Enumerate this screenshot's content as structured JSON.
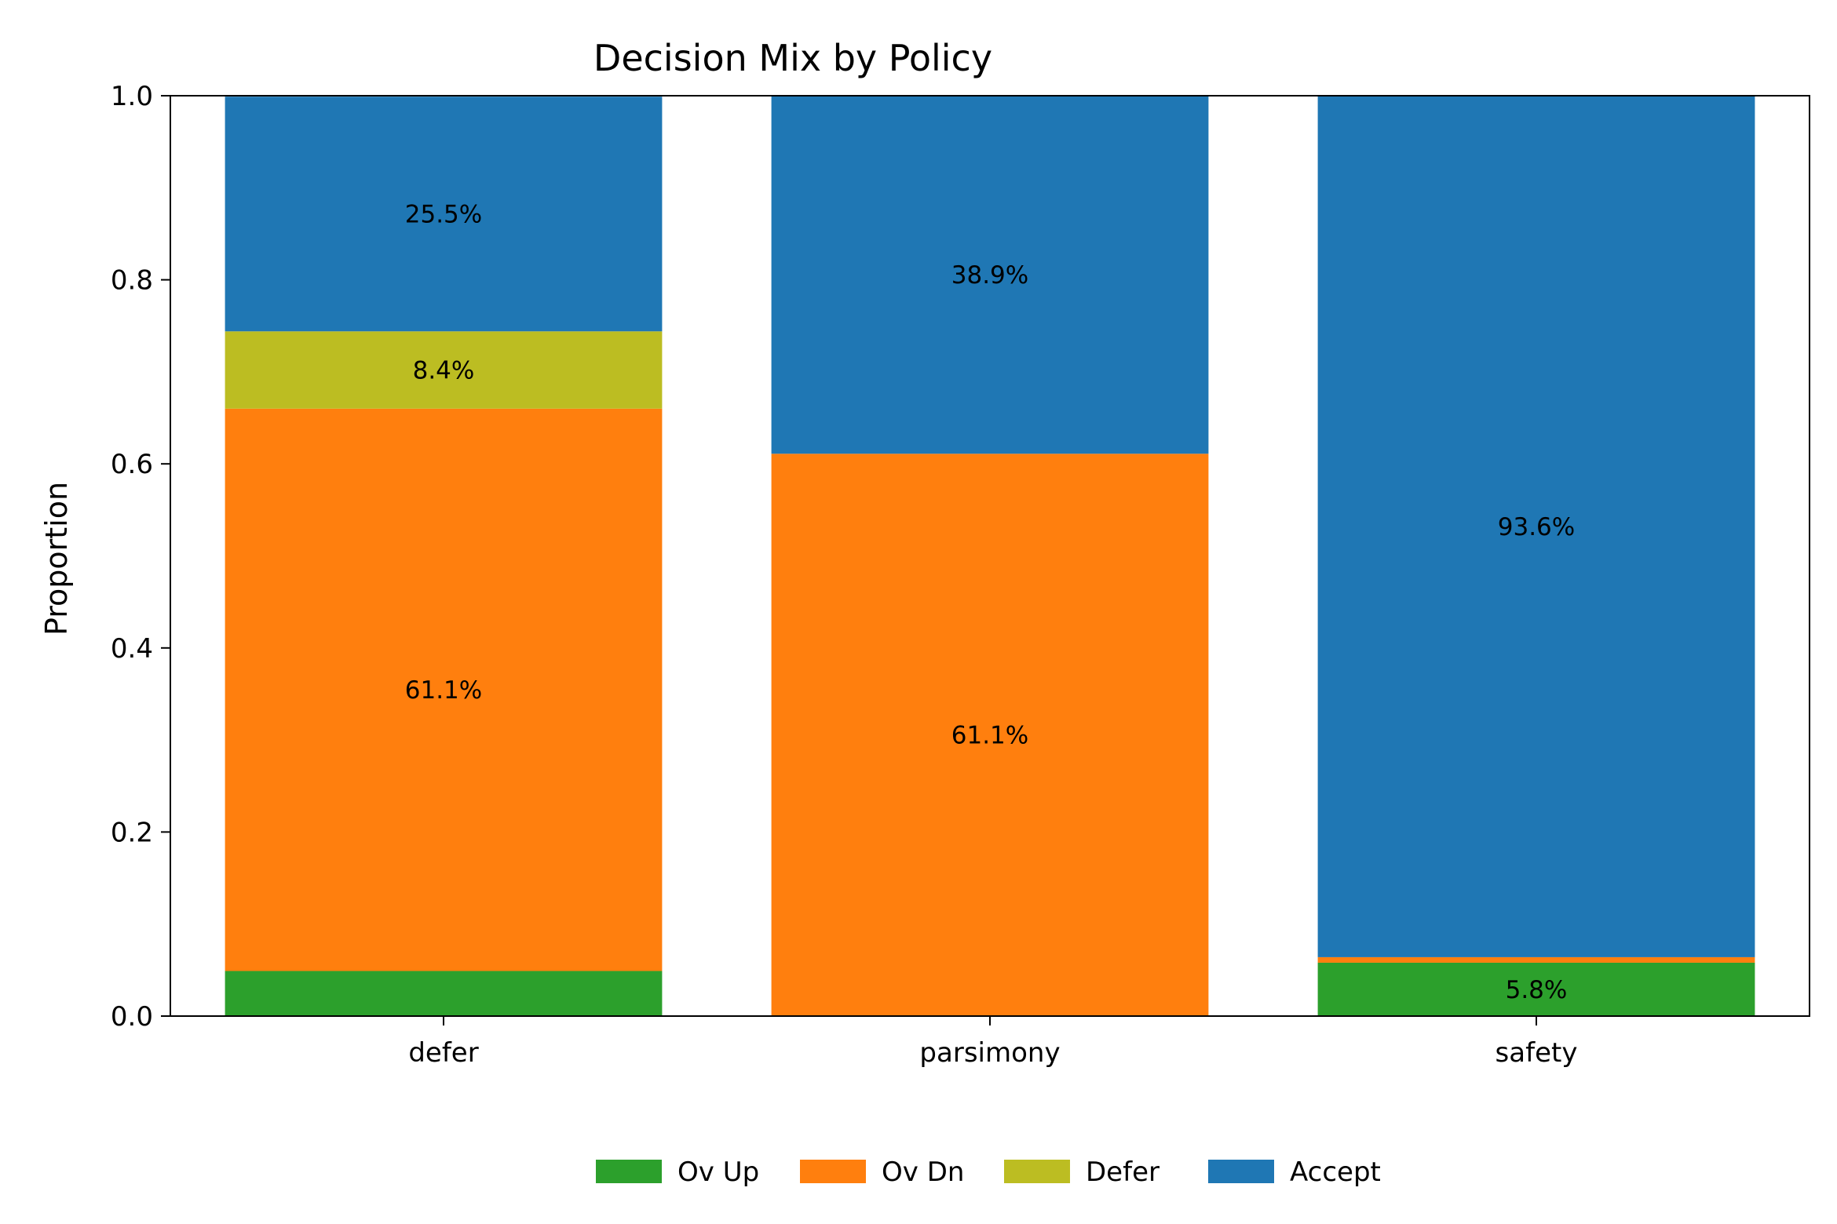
{
  "chart_data": {
    "type": "bar",
    "stacked": true,
    "normalized": true,
    "title": "Decision Mix by Policy",
    "xlabel": "",
    "ylabel": "Proportion",
    "ylim": [
      0,
      1
    ],
    "yticks": [
      0.0,
      0.2,
      0.4,
      0.6,
      0.8,
      1.0
    ],
    "ytick_labels": [
      "0.0",
      "0.2",
      "0.4",
      "0.6",
      "0.8",
      "1.0"
    ],
    "categories": [
      "defer",
      "parsimony",
      "safety"
    ],
    "grid": false,
    "legend_position": "bottom-center",
    "series": [
      {
        "name": "Ov Up",
        "color": "#2ca02c",
        "values": [
          0.049,
          0.0,
          0.058
        ],
        "labels": [
          "",
          "",
          "5.8%"
        ]
      },
      {
        "name": "Ov Dn",
        "color": "#ff7f0e",
        "values": [
          0.611,
          0.611,
          0.006
        ],
        "labels": [
          "61.1%",
          "61.1%",
          ""
        ]
      },
      {
        "name": "Defer",
        "color": "#bcbd22",
        "values": [
          0.084,
          0.0,
          0.0
        ],
        "labels": [
          "8.4%",
          "",
          ""
        ]
      },
      {
        "name": "Accept",
        "color": "#1f77b4",
        "values": [
          0.255,
          0.389,
          0.936
        ],
        "labels": [
          "25.5%",
          "38.9%",
          "93.6%"
        ]
      }
    ]
  }
}
